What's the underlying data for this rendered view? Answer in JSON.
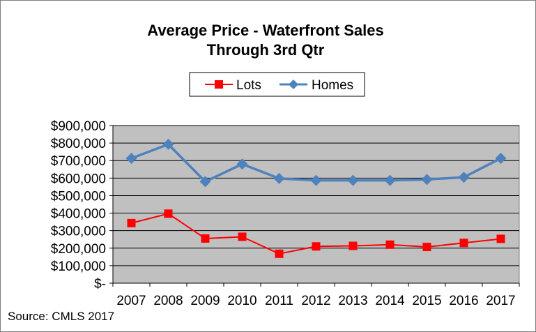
{
  "chart_data": {
    "type": "line",
    "title_line1": "Average Price - Waterfront Sales",
    "title_line2": "Through 3rd Qtr",
    "categories": [
      "2007",
      "2008",
      "2009",
      "2010",
      "2011",
      "2012",
      "2013",
      "2014",
      "2015",
      "2016",
      "2017"
    ],
    "series": [
      {
        "name": "Lots",
        "color": "#ff0000",
        "marker": "square",
        "values": [
          343000,
          397000,
          255000,
          265000,
          168000,
          210000,
          213000,
          220000,
          207000,
          230000,
          253000
        ]
      },
      {
        "name": "Homes",
        "color": "#4f81bd",
        "marker": "diamond",
        "values": [
          713000,
          793000,
          580000,
          680000,
          598000,
          587000,
          587000,
          587000,
          592000,
          605000,
          713000
        ]
      }
    ],
    "ylim": [
      0,
      900000
    ],
    "ytick_labels": [
      "$-",
      "$100,000",
      "$200,000",
      "$300,000",
      "$400,000",
      "$500,000",
      "$600,000",
      "$700,000",
      "$800,000",
      "$900,000"
    ],
    "grid": true,
    "legend_position": "top"
  },
  "source_note": "Source: CMLS  2017"
}
